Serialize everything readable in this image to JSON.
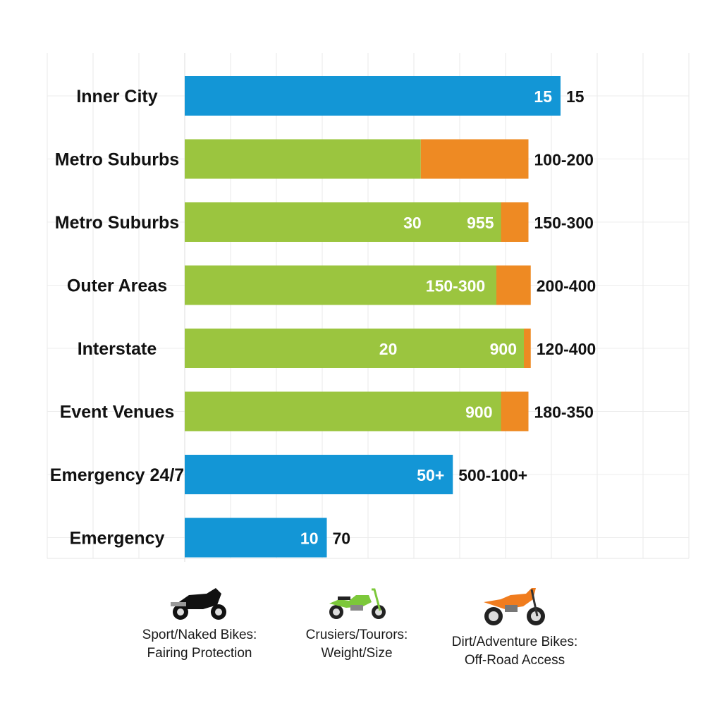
{
  "chart_data": {
    "type": "bar",
    "orientation": "horizontal",
    "stacked": true,
    "grid": true,
    "xlim": [
      0,
      11
    ],
    "colors": {
      "blue": "#1396d6",
      "green": "#9bc53f",
      "orange": "#ee8a23"
    },
    "categories": [
      "Inner City",
      "Metro Suburbs",
      "Metro Suburbs",
      "Outer Areas",
      "Interstate",
      "Event Venues",
      "Emergency 24/7",
      "Emergency"
    ],
    "rows": [
      {
        "segments": [
          {
            "color": "blue",
            "value": 8.2
          }
        ],
        "inner_labels": [
          "15"
        ],
        "end_label": "15"
      },
      {
        "segments": [
          {
            "color": "green",
            "value": 5.15
          },
          {
            "color": "orange",
            "value": 2.35
          }
        ],
        "inner_labels": [],
        "end_label": "100-200"
      },
      {
        "segments": [
          {
            "color": "green",
            "value": 6.9
          },
          {
            "color": "orange",
            "value": 0.6
          }
        ],
        "inner_labels": [
          "30",
          "955"
        ],
        "end_label": "150-300"
      },
      {
        "segments": [
          {
            "color": "green",
            "value": 6.8
          },
          {
            "color": "orange",
            "value": 0.75
          }
        ],
        "inner_labels": [
          "150-300"
        ],
        "end_label": "200-400"
      },
      {
        "segments": [
          {
            "color": "green",
            "value": 7.4
          },
          {
            "color": "orange",
            "value": 0.15
          }
        ],
        "inner_labels": [
          "20",
          "900"
        ],
        "end_label": "120-400"
      },
      {
        "segments": [
          {
            "color": "green",
            "value": 6.9
          },
          {
            "color": "orange",
            "value": 0.6
          }
        ],
        "inner_labels": [
          "900"
        ],
        "end_label": "180-350"
      },
      {
        "segments": [
          {
            "color": "blue",
            "value": 5.85
          }
        ],
        "inner_labels": [
          "50+"
        ],
        "end_label": "500-100+"
      },
      {
        "segments": [
          {
            "color": "blue",
            "value": 3.1
          }
        ],
        "inner_labels": [
          "10"
        ],
        "end_label": "70"
      }
    ]
  },
  "legend": [
    {
      "icon": "sport-motorcycle-icon",
      "color": "#111111",
      "line1": "Sport/Naked Bikes:",
      "line2": "Fairing Protection"
    },
    {
      "icon": "cruiser-motorcycle-icon",
      "color": "#7cc83a",
      "line1": "Crusiers/Tourors:",
      "line2": "Weight/Size"
    },
    {
      "icon": "dirt-motorcycle-icon",
      "color": "#f07c1e",
      "line1": "Dirt/Adventure Bikes:",
      "line2": "Off-Road Access"
    }
  ]
}
